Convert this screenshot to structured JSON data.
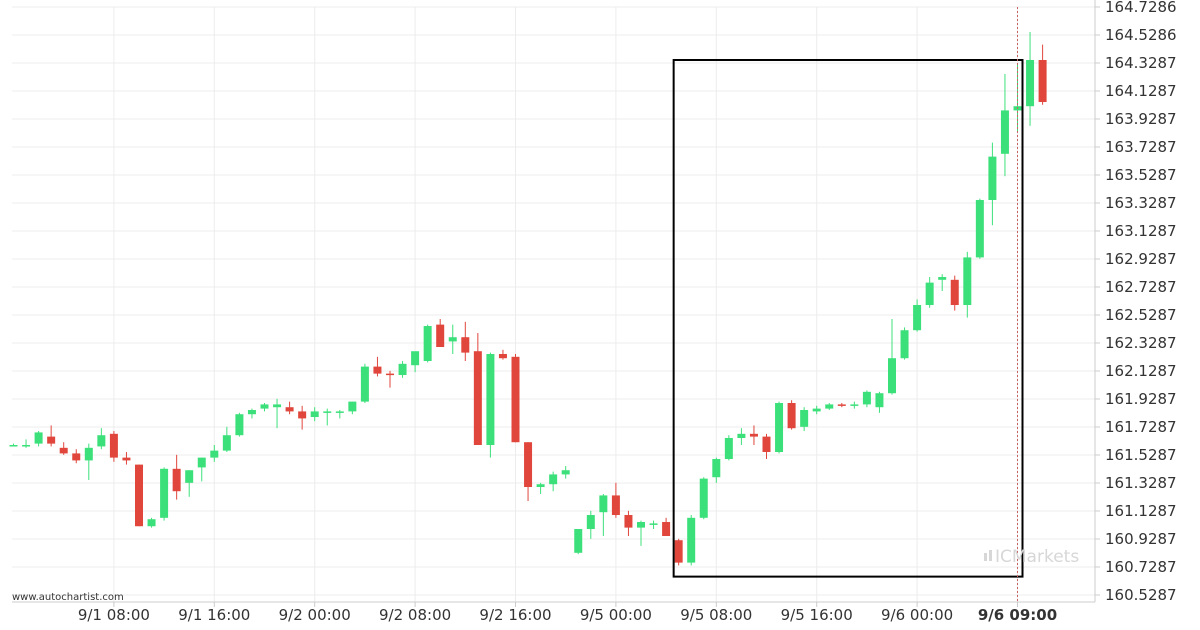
{
  "chart_data": {
    "type": "candlestick",
    "title": "",
    "y_ticks": [
      "164.7286",
      "164.5286",
      "164.3287",
      "164.1287",
      "163.9287",
      "163.7287",
      "163.5287",
      "163.3287",
      "163.1287",
      "162.9287",
      "162.7287",
      "162.5287",
      "162.3287",
      "162.1287",
      "161.9287",
      "161.7287",
      "161.5287",
      "161.3287",
      "161.1287",
      "160.9287",
      "160.7287",
      "160.5287"
    ],
    "ylim": [
      160.5287,
      164.7286
    ],
    "x_ticks": [
      {
        "label": "9/1 08:00",
        "index": 8,
        "bold": false
      },
      {
        "label": "9/1 16:00",
        "index": 16,
        "bold": false
      },
      {
        "label": "9/2 00:00",
        "index": 24,
        "bold": false
      },
      {
        "label": "9/2 08:00",
        "index": 32,
        "bold": false
      },
      {
        "label": "9/2 16:00",
        "index": 40,
        "bold": false
      },
      {
        "label": "9/5 00:00",
        "index": 48,
        "bold": false
      },
      {
        "label": "9/5 08:00",
        "index": 56,
        "bold": false
      },
      {
        "label": "9/5 16:00",
        "index": 64,
        "bold": false
      },
      {
        "label": "9/6 00:00",
        "index": 72,
        "bold": false
      },
      {
        "label": "9/6 09:00",
        "index": 80,
        "bold": true
      }
    ],
    "candles": [
      [
        161.6,
        161.61,
        161.59,
        161.6
      ],
      [
        161.6,
        161.64,
        161.58,
        161.6
      ],
      [
        161.61,
        161.7,
        161.59,
        161.69
      ],
      [
        161.66,
        161.74,
        161.59,
        161.61
      ],
      [
        161.58,
        161.62,
        161.53,
        161.54
      ],
      [
        161.54,
        161.57,
        161.47,
        161.49
      ],
      [
        161.49,
        161.61,
        161.35,
        161.58
      ],
      [
        161.59,
        161.72,
        161.57,
        161.67
      ],
      [
        161.68,
        161.7,
        161.48,
        161.51
      ],
      [
        161.51,
        161.55,
        161.46,
        161.49
      ],
      [
        161.46,
        161.46,
        161.02,
        161.02
      ],
      [
        161.02,
        161.08,
        161.01,
        161.07
      ],
      [
        161.08,
        161.44,
        161.06,
        161.43
      ],
      [
        161.43,
        161.53,
        161.21,
        161.27
      ],
      [
        161.33,
        161.42,
        161.23,
        161.42
      ],
      [
        161.44,
        161.51,
        161.34,
        161.51
      ],
      [
        161.51,
        161.6,
        161.48,
        161.56
      ],
      [
        161.56,
        161.73,
        161.55,
        161.67
      ],
      [
        161.67,
        161.83,
        161.66,
        161.82
      ],
      [
        161.82,
        161.86,
        161.79,
        161.85
      ],
      [
        161.86,
        161.9,
        161.84,
        161.89
      ],
      [
        161.87,
        161.93,
        161.72,
        161.89
      ],
      [
        161.87,
        161.91,
        161.82,
        161.84
      ],
      [
        161.84,
        161.88,
        161.71,
        161.79
      ],
      [
        161.8,
        161.87,
        161.77,
        161.84
      ],
      [
        161.84,
        161.86,
        161.74,
        161.84
      ],
      [
        161.84,
        161.85,
        161.79,
        161.84
      ],
      [
        161.84,
        161.91,
        161.82,
        161.91
      ],
      [
        161.91,
        162.18,
        161.9,
        162.16
      ],
      [
        162.16,
        162.23,
        162.09,
        162.11
      ],
      [
        162.11,
        162.13,
        162.01,
        162.1
      ],
      [
        162.1,
        162.2,
        162.08,
        162.18
      ],
      [
        162.17,
        162.24,
        162.12,
        162.27
      ],
      [
        162.2,
        162.46,
        162.19,
        162.45
      ],
      [
        162.46,
        162.5,
        162.32,
        162.3
      ],
      [
        162.34,
        162.46,
        162.25,
        162.37
      ],
      [
        162.37,
        162.48,
        162.2,
        162.26
      ],
      [
        162.27,
        162.4,
        161.6,
        161.6
      ],
      [
        161.6,
        162.26,
        161.51,
        162.25
      ],
      [
        162.25,
        162.28,
        162.21,
        162.22
      ],
      [
        162.23,
        162.25,
        161.62,
        161.62
      ],
      [
        161.62,
        161.62,
        161.2,
        161.3
      ],
      [
        161.3,
        161.33,
        161.25,
        161.32
      ],
      [
        161.32,
        161.41,
        161.27,
        161.39
      ],
      [
        161.39,
        161.45,
        161.36,
        161.42
      ],
      [
        160.83,
        161.0,
        160.82,
        161.0
      ],
      [
        161.0,
        161.13,
        160.93,
        161.1
      ],
      [
        161.12,
        161.25,
        160.95,
        161.24
      ],
      [
        161.24,
        161.33,
        161.08,
        161.1
      ],
      [
        161.1,
        161.13,
        160.95,
        161.01
      ],
      [
        161.01,
        161.06,
        160.88,
        161.05
      ],
      [
        161.04,
        161.06,
        161.0,
        161.04
      ],
      [
        161.05,
        161.08,
        160.97,
        160.95
      ],
      [
        160.92,
        160.93,
        160.74,
        160.76
      ],
      [
        160.76,
        161.1,
        160.74,
        161.08
      ],
      [
        161.08,
        161.37,
        161.07,
        161.36
      ],
      [
        161.37,
        161.51,
        161.33,
        161.5
      ],
      [
        161.5,
        161.67,
        161.49,
        161.65
      ],
      [
        161.65,
        161.72,
        161.6,
        161.68
      ],
      [
        161.68,
        161.74,
        161.6,
        161.66
      ],
      [
        161.66,
        161.68,
        161.5,
        161.55
      ],
      [
        161.55,
        161.91,
        161.54,
        161.9
      ],
      [
        161.9,
        161.92,
        161.71,
        161.72
      ],
      [
        161.73,
        161.87,
        161.7,
        161.85
      ],
      [
        161.84,
        161.88,
        161.82,
        161.86
      ],
      [
        161.86,
        161.9,
        161.85,
        161.89
      ],
      [
        161.89,
        161.9,
        161.87,
        161.88
      ],
      [
        161.88,
        161.91,
        161.86,
        161.89
      ],
      [
        161.89,
        161.99,
        161.87,
        161.98
      ],
      [
        161.87,
        161.98,
        161.83,
        161.97
      ],
      [
        161.97,
        162.5,
        161.96,
        162.22
      ],
      [
        162.22,
        162.44,
        162.21,
        162.42
      ],
      [
        162.42,
        162.64,
        162.41,
        162.6
      ],
      [
        162.6,
        162.8,
        162.58,
        162.76
      ],
      [
        162.78,
        162.82,
        162.7,
        162.8
      ],
      [
        162.78,
        162.81,
        162.56,
        162.6
      ],
      [
        162.6,
        162.98,
        162.51,
        162.94
      ],
      [
        162.94,
        163.36,
        162.93,
        163.35
      ],
      [
        163.35,
        163.76,
        163.17,
        163.66
      ],
      [
        163.68,
        164.25,
        163.52,
        163.99
      ],
      [
        163.99,
        164.32,
        163.84,
        164.02
      ],
      [
        164.02,
        164.55,
        163.88,
        164.35
      ],
      [
        164.35,
        164.46,
        164.03,
        164.05
      ]
    ],
    "bull_color": "#3ce07a",
    "bear_color": "#e0463c",
    "highlight_box": {
      "i_start": 53,
      "i_end": 80,
      "y_top": 164.35,
      "y_bottom": 160.66
    },
    "current_marker_index": 80
  },
  "watermark": {
    "text": "www.autochartist.com"
  },
  "brand": {
    "text": "ICMarkets"
  }
}
